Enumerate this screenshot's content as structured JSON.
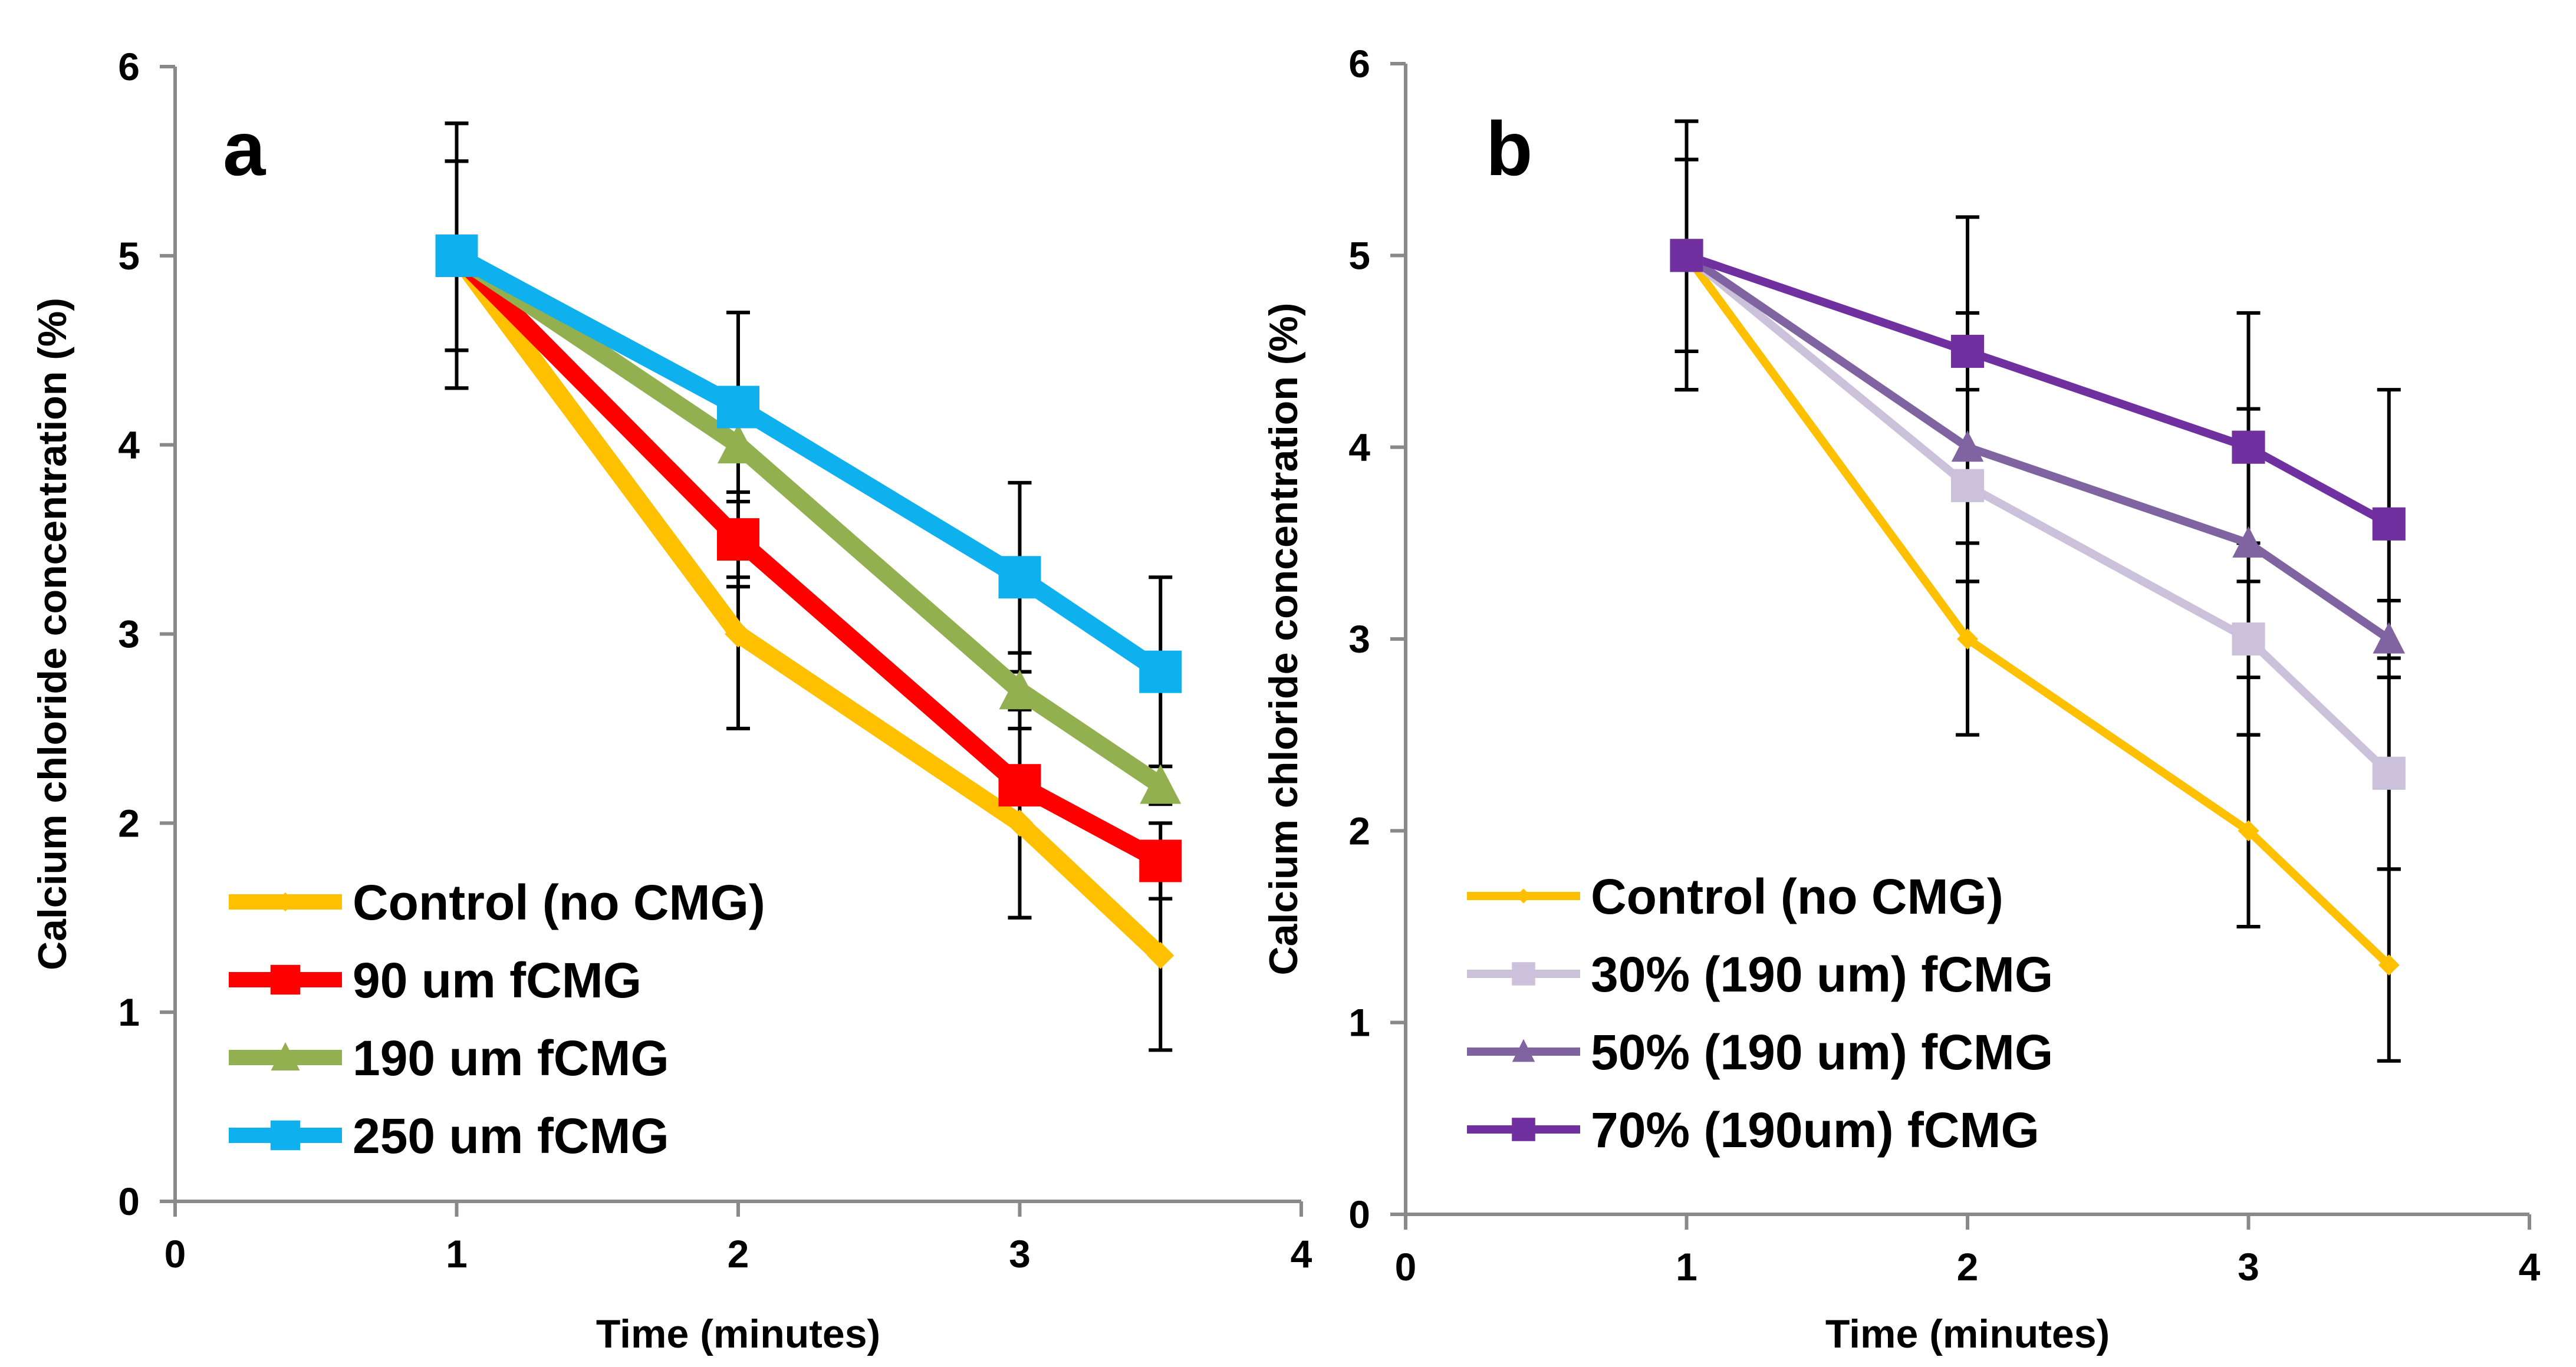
{
  "chart_data": [
    {
      "type": "line",
      "panel_label": "a",
      "xlabel": "Time (minutes)",
      "ylabel": "Calcium chloride concentration (%)",
      "xlim": [
        0,
        4
      ],
      "ylim": [
        0,
        6
      ],
      "x_ticks": [
        "0",
        "1",
        "2",
        "3",
        "4"
      ],
      "y_ticks": [
        "0",
        "1",
        "2",
        "3",
        "4",
        "5",
        "6"
      ],
      "grid": false,
      "legend_position": "bottom-left",
      "x": [
        1,
        2,
        3,
        3.5
      ],
      "series": [
        {
          "name": "Control (no CMG)",
          "marker": "diamond",
          "color": "#FFC000",
          "values": [
            5,
            3,
            2,
            1.3
          ],
          "errors": [
            0.5,
            0.5,
            0.5,
            0.5
          ]
        },
        {
          "name": "90 um fCMG",
          "marker": "square",
          "color": "#FF0000",
          "values": [
            5,
            3.5,
            2.2,
            1.8
          ],
          "errors": [
            0.5,
            0.25,
            0.7,
            0.2
          ]
        },
        {
          "name": "190 um fCMG",
          "marker": "triangle",
          "color": "#92B050",
          "values": [
            5,
            4,
            2.7,
            2.2
          ],
          "errors": [
            0.7,
            0.7,
            0.1,
            0.1
          ]
        },
        {
          "name": "250 um fCMG",
          "marker": "square",
          "color": "#0FB0EE",
          "values": [
            5,
            4.2,
            3.3,
            2.8
          ],
          "errors": [
            0.7,
            0.5,
            0.5,
            0.5
          ]
        }
      ]
    },
    {
      "type": "line",
      "panel_label": "b",
      "xlabel": "Time (minutes)",
      "ylabel": "Calcium chloride concentration (%)",
      "xlim": [
        0,
        4
      ],
      "ylim": [
        0,
        6
      ],
      "x_ticks": [
        "0",
        "1",
        "2",
        "3",
        "4"
      ],
      "y_ticks": [
        "0",
        "1",
        "2",
        "3",
        "4",
        "5",
        "6"
      ],
      "grid": false,
      "legend_position": "bottom-left",
      "x": [
        1,
        2,
        3,
        3.5
      ],
      "series": [
        {
          "name": "Control (no CMG)",
          "marker": "diamond",
          "color": "#FFC000",
          "values": [
            5,
            3,
            2,
            1.3
          ],
          "errors": [
            0.7,
            0.5,
            0.5,
            0.5
          ]
        },
        {
          "name": "30% (190 um) fCMG",
          "marker": "square",
          "color": "#CCC1DA",
          "values": [
            5,
            3.8,
            3,
            2.3
          ],
          "errors": [
            0.5,
            0.5,
            0.5,
            0.5
          ]
        },
        {
          "name": "50% (190 um) fCMG",
          "marker": "triangle",
          "color": "#8064A2",
          "values": [
            5,
            4,
            3.5,
            3
          ],
          "errors": [
            0.5,
            0.7,
            0.7,
            0.2
          ]
        },
        {
          "name": "70% (190um) fCMG",
          "marker": "square",
          "color": "#7030A0",
          "values": [
            5,
            4.5,
            4,
            3.6
          ],
          "errors": [
            0.7,
            0.7,
            0.7,
            0.7
          ]
        }
      ]
    }
  ]
}
